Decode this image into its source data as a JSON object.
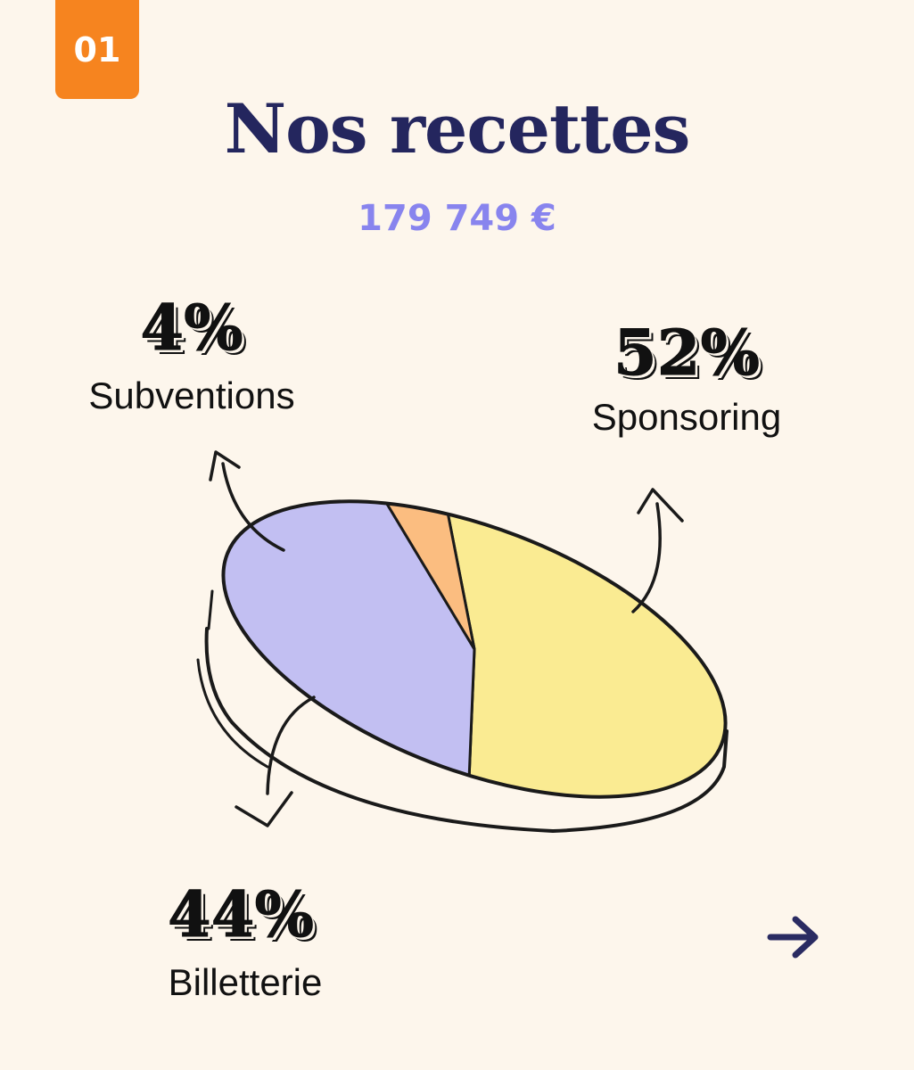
{
  "badge": "01",
  "header": {
    "title": "Nos recettes",
    "total": "179 749 €"
  },
  "chart_data": {
    "type": "pie",
    "total": "179 749 €",
    "slices": [
      {
        "label": "Sponsoring",
        "value": 52,
        "display": "52%",
        "color": "#faeb92"
      },
      {
        "label": "Billetterie",
        "value": 44,
        "display": "44%",
        "color": "#c2bff2"
      },
      {
        "label": "Subventions",
        "value": 4,
        "display": "4%",
        "color": "#fbbd80"
      }
    ]
  },
  "nav": {
    "next_icon": "arrow-right-icon",
    "color": "#2a2b62"
  }
}
